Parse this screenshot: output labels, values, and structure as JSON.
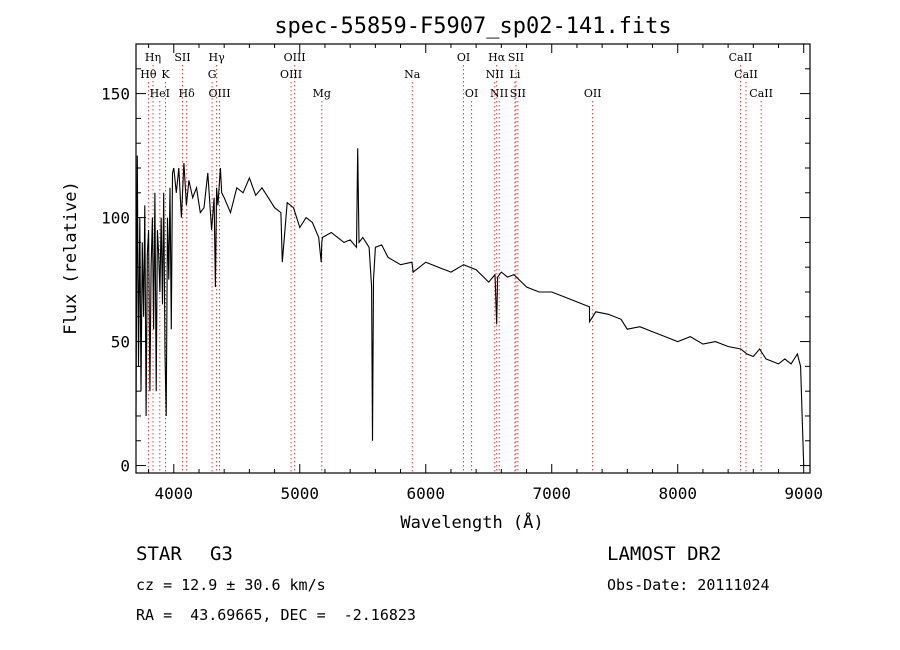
{
  "chart_data": {
    "type": "line",
    "title": "spec-55859-F5907_sp02-141.fits",
    "xlabel": "Wavelength (Å)",
    "ylabel": "Flux (relative)",
    "xlim": [
      3700,
      9050
    ],
    "ylim": [
      -3,
      170
    ],
    "xticks": [
      4000,
      5000,
      6000,
      7000,
      8000,
      9000
    ],
    "yticks": [
      0,
      50,
      100,
      150
    ],
    "series": [
      {
        "name": "flux",
        "x": [
          3700,
          3710,
          3720,
          3730,
          3740,
          3750,
          3760,
          3770,
          3780,
          3790,
          3800,
          3810,
          3820,
          3830,
          3840,
          3850,
          3860,
          3870,
          3880,
          3890,
          3900,
          3910,
          3920,
          3930,
          3940,
          3950,
          3960,
          3970,
          3980,
          3990,
          4000,
          4020,
          4040,
          4060,
          4080,
          4100,
          4120,
          4150,
          4180,
          4210,
          4240,
          4270,
          4300,
          4320,
          4330,
          4340,
          4350,
          4370,
          4380,
          4400,
          4450,
          4500,
          4550,
          4600,
          4650,
          4700,
          4750,
          4800,
          4850,
          4861,
          4900,
          4950,
          5000,
          5050,
          5100,
          5150,
          5170,
          5175,
          5180,
          5250,
          5300,
          5350,
          5400,
          5450,
          5460,
          5470,
          5500,
          5550,
          5570,
          5577,
          5585,
          5600,
          5650,
          5700,
          5800,
          5890,
          5900,
          6000,
          6100,
          6200,
          6300,
          6400,
          6500,
          6550,
          6563,
          6570,
          6600,
          6650,
          6700,
          6800,
          6900,
          7000,
          7100,
          7200,
          7300,
          7300,
          7350,
          7450,
          7550,
          7600,
          7700,
          7800,
          7900,
          8000,
          8100,
          8200,
          8300,
          8400,
          8500,
          8550,
          8600,
          8650,
          8700,
          8750,
          8800,
          8850,
          8900,
          8950,
          8975,
          9000
        ],
        "y": [
          20,
          125,
          40,
          100,
          30,
          90,
          60,
          105,
          20,
          85,
          95,
          30,
          80,
          100,
          55,
          110,
          30,
          95,
          85,
          70,
          100,
          65,
          110,
          45,
          20,
          100,
          75,
          112,
          55,
          118,
          120,
          110,
          120,
          100,
          122,
          105,
          115,
          108,
          112,
          102,
          104,
          118,
          95,
          108,
          72,
          112,
          105,
          120,
          110,
          108,
          102,
          112,
          110,
          116,
          109,
          112,
          108,
          104,
          102,
          82,
          106,
          104,
          96,
          100,
          98,
          92,
          82,
          90,
          92,
          94,
          92,
          90,
          91,
          88,
          128,
          90,
          92,
          88,
          72,
          10,
          75,
          88,
          89,
          84,
          81,
          82,
          78,
          82,
          80,
          78,
          81,
          79,
          74,
          77,
          57,
          76,
          78,
          76,
          77,
          72,
          70,
          70,
          68,
          66,
          64,
          58,
          62,
          61,
          59,
          55,
          56,
          54,
          52,
          50,
          52,
          49,
          50,
          48,
          47,
          45,
          44,
          47,
          43,
          42,
          41,
          43,
          41,
          45,
          40,
          0
        ]
      }
    ],
    "line_markers": [
      {
        "label": "Hη",
        "x": 3835,
        "row": 0
      },
      {
        "label": "SII",
        "x": 4069,
        "row": 0
      },
      {
        "label": "Hγ",
        "x": 4340,
        "row": 0
      },
      {
        "label": "OIII",
        "x": 4959,
        "row": 0
      },
      {
        "label": "OI",
        "x": 6300,
        "row": 0
      },
      {
        "label": "Hα",
        "x": 6563,
        "row": 0
      },
      {
        "label": "SII",
        "x": 6716,
        "row": 0
      },
      {
        "label": "CaII",
        "x": 8498,
        "row": 0
      },
      {
        "label": "Hθ",
        "x": 3798,
        "row": 1
      },
      {
        "label": "K",
        "x": 3934,
        "row": 1
      },
      {
        "label": "G",
        "x": 4304,
        "row": 1
      },
      {
        "label": "OIII",
        "x": 4931,
        "row": 1
      },
      {
        "label": "Na",
        "x": 5893,
        "row": 1
      },
      {
        "label": "NII",
        "x": 6548,
        "row": 1
      },
      {
        "label": "Li",
        "x": 6708,
        "row": 1
      },
      {
        "label": "CaII",
        "x": 8542,
        "row": 1
      },
      {
        "label": "HeI",
        "x": 3889,
        "row": 2
      },
      {
        "label": "Hδ",
        "x": 4102,
        "row": 2
      },
      {
        "label": "OIII",
        "x": 4363,
        "row": 2
      },
      {
        "label": "Mg",
        "x": 5175,
        "row": 2
      },
      {
        "label": "OI",
        "x": 6364,
        "row": 2
      },
      {
        "label": "NII",
        "x": 6583,
        "row": 2
      },
      {
        "label": "SII",
        "x": 6731,
        "row": 2
      },
      {
        "label": "OII",
        "x": 7325,
        "row": 2
      },
      {
        "label": "CaII",
        "x": 8662,
        "row": 2
      }
    ],
    "marker_color": "#e04040"
  },
  "info": {
    "object_class": "STAR",
    "subclass": "G3",
    "survey": "LAMOST DR2",
    "redshift": "cz = 12.9 ± 30.6 km/s",
    "obs_date": "Obs-Date: 20111024",
    "coords": "RA =  43.69665, DEC =  -2.16823"
  }
}
